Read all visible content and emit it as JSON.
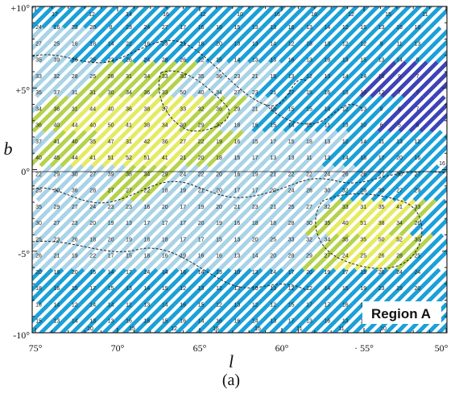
{
  "figure": {
    "x_axis": {
      "label": "l",
      "ticks": [
        "75°",
        "70°",
        "65°",
        "60°",
        "· 55°",
        "50°"
      ]
    },
    "y_axis": {
      "label": "b",
      "ticks": [
        "+10°",
        "+5°",
        "0°",
        "-5°",
        "-10°"
      ]
    },
    "region_label": "Region A",
    "caption": "(a)",
    "colors": {
      "light_blue": "#a9d3e6",
      "blue": "#1ba0d8",
      "yellow": "#e6ea62",
      "yellow_green": "#b4d24c",
      "dark_blue": "#3d43b8",
      "contour": "#222222"
    },
    "cell_rows": [
      [
        "24",
        "16",
        "23",
        "20",
        "8",
        "23",
        "24",
        "27",
        "17",
        "16",
        "18",
        "15",
        "13",
        "13",
        "16",
        "13",
        "14",
        "12",
        "15",
        "13",
        "16",
        "18"
      ],
      [
        "27",
        "25",
        "16",
        "18",
        "14",
        "22",
        "16",
        "23",
        "21",
        "16",
        "20",
        "13",
        "13",
        "14",
        "12",
        "18",
        "13",
        "12",
        "12",
        "9",
        "11",
        "13"
      ],
      [
        "35",
        "39",
        "26",
        "25",
        "23",
        "26",
        "24",
        "28",
        "26",
        "22",
        "15",
        "14",
        "13",
        "13",
        "16",
        "13",
        "18",
        "13",
        "15",
        "13",
        "14",
        "8"
      ],
      [
        "33",
        "32",
        "28",
        "25",
        "28",
        "31",
        "34",
        "33",
        "30",
        "35",
        "36",
        "23",
        "21",
        "15",
        "13",
        "12",
        "13",
        "14",
        "14",
        "16",
        "9",
        "7"
      ],
      [
        "35",
        "37",
        "31",
        "31",
        "30",
        "34",
        "36",
        "33",
        "50",
        "40",
        "34",
        "27",
        "23",
        "21",
        "17",
        "15",
        "16",
        "13",
        "10",
        "12",
        "7",
        "7"
      ],
      [
        "34",
        "36",
        "31",
        "44",
        "40",
        "36",
        "38",
        "37",
        "33",
        "32",
        "36",
        "29",
        "21",
        "18",
        "15",
        "15",
        "14",
        "12",
        "13",
        "9",
        "6",
        "7"
      ],
      [
        "36",
        "40",
        "44",
        "40",
        "50",
        "41",
        "38",
        "34",
        "30",
        "29",
        "27",
        "18",
        "16",
        "15",
        "14",
        "15",
        "11",
        "13",
        "10",
        "6",
        "5",
        "6"
      ],
      [
        "37",
        "41",
        "40",
        "35",
        "47",
        "31",
        "42",
        "36",
        "27",
        "22",
        "19",
        "16",
        "15",
        "17",
        "15",
        "18",
        "13",
        "12",
        "14",
        "11",
        "13",
        "12"
      ],
      [
        "40",
        "45",
        "44",
        "41",
        "51",
        "52",
        "51",
        "41",
        "21",
        "20",
        "18",
        "15",
        "17",
        "13",
        "13",
        "11",
        "13",
        "14",
        "18",
        "17",
        "20",
        "16"
      ],
      [
        "22",
        "29",
        "30",
        "27",
        "39",
        "38",
        "34",
        "29",
        "24",
        "22",
        "20",
        "16",
        "19",
        "21",
        "22",
        "22",
        "24",
        "26",
        "26",
        "27",
        "30",
        "27"
      ],
      [
        "25",
        "30",
        "36",
        "28",
        "27",
        "27",
        "22",
        "18",
        "19",
        "21",
        "20",
        "17",
        "17",
        "20",
        "24",
        "26",
        "30",
        "32",
        "28",
        "30",
        "27",
        "29"
      ],
      [
        "35",
        "29",
        "27",
        "24",
        "23",
        "23",
        "16",
        "20",
        "17",
        "19",
        "20",
        "21",
        "23",
        "21",
        "25",
        "27",
        "32",
        "33",
        "31",
        "35",
        "41",
        "33"
      ],
      [
        "30",
        "27",
        "23",
        "20",
        "19",
        "13",
        "17",
        "17",
        "17",
        "20",
        "19",
        "16",
        "18",
        "18",
        "28",
        "30",
        "35",
        "40",
        "51",
        "38",
        "34",
        "26"
      ],
      [
        "25",
        "23",
        "26",
        "18",
        "20",
        "19",
        "18",
        "18",
        "17",
        "17",
        "15",
        "13",
        "20",
        "25",
        "33",
        "32",
        "34",
        "35",
        "35",
        "50",
        "52",
        "30"
      ],
      [
        "26",
        "21",
        "19",
        "22",
        "17",
        "15",
        "18",
        "16",
        "19",
        "16",
        "16",
        "13",
        "14",
        "20",
        "28",
        "29",
        "27",
        "24",
        "25",
        "26",
        "28",
        "25"
      ],
      [
        "20",
        "19",
        "20",
        "15",
        "14",
        "17",
        "14",
        "14",
        "16",
        "14",
        "13",
        "10",
        "13",
        "14",
        "17",
        "20",
        "19",
        "17",
        "19",
        "20",
        "24",
        "24"
      ],
      [
        "18",
        "16",
        "15",
        "17",
        "15",
        "13",
        "14",
        "15",
        "12",
        "13",
        "12",
        "13",
        "10",
        "13",
        "12",
        "12",
        "14",
        "15",
        "19",
        "23",
        "19",
        "20"
      ],
      [
        "16",
        "14",
        "12",
        "14",
        "14",
        "12",
        "13",
        "14",
        "16",
        "15",
        "12",
        "13",
        "12",
        "12",
        "15",
        "17",
        "17",
        "16",
        "18",
        "14",
        "17",
        "18"
      ],
      [
        "15",
        "13",
        "14",
        "13",
        "13",
        "16",
        "18",
        "15",
        "16",
        "14",
        "16",
        "16",
        "14",
        "13",
        "17",
        "13",
        "16",
        "13",
        "14",
        "14",
        "14",
        "15"
      ]
    ],
    "top_edge_numbers": [
      "17",
      "12",
      "14",
      "16",
      "12",
      "10",
      "16",
      "16",
      "12",
      "15",
      "11"
    ],
    "bottom_edge_numbers": [
      "10",
      "15",
      "12",
      "16",
      "15",
      "11",
      "11",
      "10"
    ],
    "right_edge_number": "16"
  }
}
